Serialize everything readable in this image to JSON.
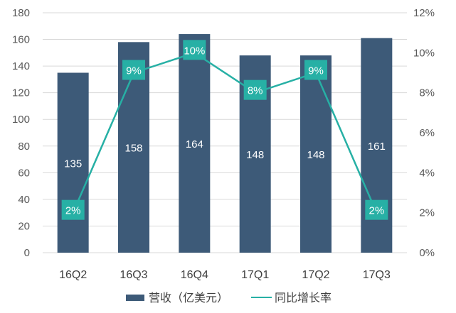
{
  "chart_data": {
    "type": "bar",
    "categories": [
      "16Q2",
      "16Q3",
      "16Q4",
      "17Q1",
      "17Q2",
      "17Q3"
    ],
    "series": [
      {
        "name": "营收（亿美元）",
        "type": "bar",
        "axis": "left",
        "values": [
          135,
          158,
          164,
          148,
          148,
          161
        ],
        "labels": [
          "135",
          "158",
          "164",
          "148",
          "148",
          "161"
        ],
        "color": "#3d5a78"
      },
      {
        "name": "同比增长率",
        "type": "line",
        "axis": "right",
        "values": [
          2,
          9,
          10,
          8,
          9,
          2
        ],
        "labels": [
          "2%",
          "9%",
          "10%",
          "8%",
          "9%",
          "2%"
        ],
        "color": "#27b0a5"
      }
    ],
    "y_left": {
      "range": [
        0,
        180
      ],
      "ticks": [
        "0",
        "20",
        "40",
        "60",
        "80",
        "100",
        "120",
        "140",
        "160",
        "180"
      ]
    },
    "y_right": {
      "range": [
        0,
        12
      ],
      "ticks": [
        "0%",
        "2%",
        "4%",
        "6%",
        "8%",
        "10%",
        "12%"
      ]
    },
    "grid": true,
    "legend_position": "bottom"
  }
}
